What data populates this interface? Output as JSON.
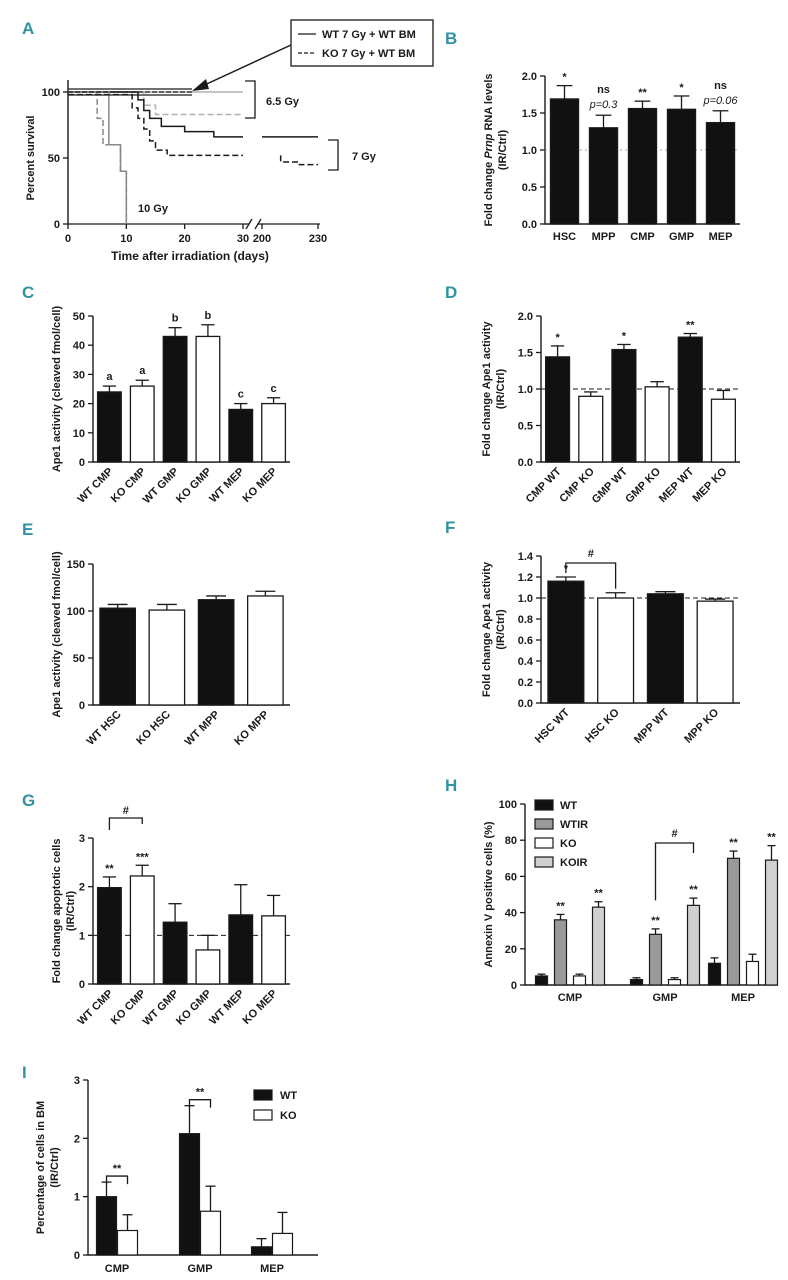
{
  "chart_data": [
    {
      "panel": "A",
      "type": "line",
      "ylabel": "Percent survival",
      "xlabel": "Time after irradiation (days)",
      "y_ticks": [
        "0",
        "50",
        "100"
      ],
      "x_ticks": [
        "0",
        "10",
        "20",
        "30",
        "200",
        "230"
      ],
      "legend": {
        "wt": "WT 7 Gy + WT BM",
        "ko": "KO 7 Gy + WT BM"
      },
      "dose_labels": {
        "d65": "6.5 Gy",
        "d7": "7 Gy",
        "d10": "10 Gy"
      },
      "series": [
        {
          "name": "WT 6.5 Gy",
          "style": "solid",
          "color": "#b0b0b0",
          "points": [
            [
              0,
              100
            ],
            [
              30,
              100
            ]
          ]
        },
        {
          "name": "KO 6.5 Gy",
          "style": "dashed",
          "color": "#b0b0b0",
          "points": [
            [
              0,
              100
            ],
            [
              13,
              100
            ],
            [
              13,
              90
            ],
            [
              15,
              90
            ],
            [
              15,
              83
            ],
            [
              30,
              83
            ]
          ]
        },
        {
          "name": "WT 7 Gy",
          "style": "solid",
          "color": "#1a1a1a",
          "points": [
            [
              0,
              100
            ],
            [
              12,
              100
            ],
            [
              12,
              94
            ],
            [
              13,
              94
            ],
            [
              13,
              86
            ],
            [
              14,
              86
            ],
            [
              14,
              80
            ],
            [
              16,
              80
            ],
            [
              16,
              74
            ],
            [
              20,
              74
            ],
            [
              20,
              70
            ],
            [
              25,
              70
            ],
            [
              25,
              66
            ],
            [
              30,
              66
            ],
            [
              200,
              66
            ],
            [
              230,
              66
            ]
          ]
        },
        {
          "name": "KO 7 Gy",
          "style": "dashed",
          "color": "#1a1a1a",
          "points": [
            [
              0,
              98
            ],
            [
              11,
              98
            ],
            [
              11,
              88
            ],
            [
              12,
              88
            ],
            [
              12,
              80
            ],
            [
              13,
              80
            ],
            [
              13,
              72
            ],
            [
              14,
              72
            ],
            [
              14,
              63
            ],
            [
              15,
              63
            ],
            [
              15,
              56
            ],
            [
              17,
              56
            ],
            [
              17,
              52
            ],
            [
              30,
              52
            ],
            [
              210,
              52
            ],
            [
              210,
              47
            ],
            [
              220,
              47
            ],
            [
              220,
              45
            ],
            [
              230,
              45
            ]
          ]
        },
        {
          "name": "WT 10 Gy",
          "style": "solid",
          "color": "#888888",
          "points": [
            [
              0,
              100
            ],
            [
              7,
              100
            ],
            [
              7,
              60
            ],
            [
              9,
              60
            ],
            [
              9,
              40
            ],
            [
              10,
              40
            ],
            [
              10,
              0
            ]
          ]
        },
        {
          "name": "KO 10 Gy",
          "style": "dashed",
          "color": "#888888",
          "points": [
            [
              0,
              100
            ],
            [
              5,
              100
            ],
            [
              5,
              80
            ],
            [
              6,
              80
            ],
            [
              6,
              60
            ],
            [
              9,
              60
            ],
            [
              9,
              40
            ],
            [
              10,
              40
            ],
            [
              10,
              0
            ]
          ]
        }
      ]
    },
    {
      "panel": "B",
      "type": "bar",
      "ylabel_pre": "Fold change ",
      "ylabel_it": "Prnp",
      "ylabel_post": " RNA levels",
      "ylabel2": "(IR/Ctrl)",
      "categories": [
        "HSC",
        "MPP",
        "CMP",
        "GMP",
        "MEP"
      ],
      "values": [
        1.69,
        1.3,
        1.56,
        1.55,
        1.37
      ],
      "errors": [
        0.18,
        0.17,
        0.1,
        0.18,
        0.16
      ],
      "sig": [
        "*",
        "ns",
        "**",
        "*",
        "ns"
      ],
      "pvals": [
        "",
        "p=0.3",
        "",
        "",
        "p=0.06"
      ],
      "ylim": [
        0,
        2.0
      ],
      "y_ticks": [
        "0.0",
        "0.5",
        "1.0",
        "1.5",
        "2.0"
      ],
      "reference": 1.0
    },
    {
      "panel": "C",
      "type": "bar",
      "ylabel": "Ape1 activity (cleaved fmol/cell)",
      "categories": [
        "WT CMP",
        "KO CMP",
        "WT GMP",
        "KO GMP",
        "WT MEP",
        "KO MEP"
      ],
      "values": [
        24,
        26,
        43,
        43,
        18,
        20
      ],
      "errors": [
        2,
        2,
        3,
        4,
        2,
        2
      ],
      "fills": [
        "black",
        "white",
        "black",
        "white",
        "black",
        "white"
      ],
      "letters": [
        "a",
        "a",
        "b",
        "b",
        "c",
        "c"
      ],
      "ylim": [
        0,
        50
      ],
      "y_ticks": [
        "0",
        "10",
        "20",
        "30",
        "40",
        "50"
      ]
    },
    {
      "panel": "D",
      "type": "bar",
      "ylabel": "Fold change Ape1 activity",
      "ylabel2": "(IR/Ctrl)",
      "categories": [
        "CMP WT",
        "CMP KO",
        "GMP WT",
        "GMP KO",
        "MEP WT",
        "MEP KO"
      ],
      "values": [
        1.44,
        0.9,
        1.54,
        1.03,
        1.71,
        0.86
      ],
      "errors": [
        0.15,
        0.06,
        0.07,
        0.07,
        0.05,
        0.12
      ],
      "fills": [
        "black",
        "white",
        "black",
        "white",
        "black",
        "white"
      ],
      "sig": [
        "*",
        "",
        "*",
        "",
        "**",
        ""
      ],
      "ylim": [
        0,
        2.0
      ],
      "y_ticks": [
        "0.0",
        "0.5",
        "1.0",
        "1.5",
        "2.0"
      ],
      "reference": 1.0
    },
    {
      "panel": "E",
      "type": "bar",
      "ylabel": "Ape1 activity (cleaved fmol/cell)",
      "categories": [
        "WT HSC",
        "KO HSC",
        "WT MPP",
        "KO MPP"
      ],
      "values": [
        103,
        101,
        112,
        116
      ],
      "errors": [
        4,
        6,
        4,
        5
      ],
      "fills": [
        "black",
        "white",
        "black",
        "white"
      ],
      "ylim": [
        0,
        150
      ],
      "y_ticks": [
        "0",
        "50",
        "100",
        "150"
      ]
    },
    {
      "panel": "F",
      "type": "bar",
      "ylabel": "Fold change Ape1 activity",
      "ylabel2": "(IR/Ctrl)",
      "categories": [
        "HSC WT",
        "HSC KO",
        "MPP WT",
        "MPP KO"
      ],
      "values": [
        1.16,
        1.0,
        1.04,
        0.97
      ],
      "errors": [
        0.04,
        0.05,
        0.02,
        0.02
      ],
      "fills": [
        "black",
        "white",
        "black",
        "white"
      ],
      "sig": [
        "*",
        "",
        "",
        ""
      ],
      "bracket_label": "#",
      "ylim": [
        0,
        1.4
      ],
      "y_ticks": [
        "0.0",
        "0.2",
        "0.4",
        "0.6",
        "0.8",
        "1.0",
        "1.2",
        "1.4"
      ],
      "reference": 1.0
    },
    {
      "panel": "G",
      "type": "bar",
      "ylabel": "Fold change apoptotic cells",
      "ylabel2": "(IR/Ctrl)",
      "categories": [
        "WT CMP",
        "KO CMP",
        "WT GMP",
        "KO GMP",
        "WT MEP",
        "KO MEP"
      ],
      "values": [
        1.98,
        2.22,
        1.27,
        0.7,
        1.42,
        1.4
      ],
      "errors": [
        0.22,
        0.22,
        0.38,
        0.3,
        0.62,
        0.42
      ],
      "fills": [
        "black",
        "white",
        "black",
        "white",
        "black",
        "white"
      ],
      "sig": [
        "**",
        "***",
        "",
        "",
        "",
        ""
      ],
      "bracket_label": "#",
      "ylim": [
        0,
        3
      ],
      "y_ticks": [
        "0",
        "1",
        "2",
        "3"
      ],
      "reference": 1.0
    },
    {
      "panel": "H",
      "type": "bar",
      "ylabel": "Annexin V positive cells (%)",
      "categories": [
        "CMP",
        "GMP",
        "MEP"
      ],
      "series": [
        {
          "name": "WT",
          "color": "#111111",
          "values": [
            5,
            3,
            12
          ],
          "errors": [
            1,
            1,
            3
          ],
          "sig": [
            "",
            "",
            ""
          ]
        },
        {
          "name": "WTIR",
          "color": "#9a9a9a",
          "values": [
            36,
            28,
            70
          ],
          "errors": [
            3,
            3,
            4
          ],
          "sig": [
            "**",
            "**",
            "**"
          ]
        },
        {
          "name": "KO",
          "color": "#ffffff",
          "values": [
            5,
            3,
            13
          ],
          "errors": [
            1,
            1,
            4
          ],
          "sig": [
            "",
            "",
            ""
          ]
        },
        {
          "name": "KOIR",
          "color": "#d0d0d0",
          "values": [
            43,
            44,
            69
          ],
          "errors": [
            3,
            4,
            8
          ],
          "sig": [
            "**",
            "**",
            "**"
          ]
        }
      ],
      "bracket_label": "#",
      "ylim": [
        0,
        100
      ],
      "y_ticks": [
        "0",
        "20",
        "40",
        "60",
        "80",
        "100"
      ]
    },
    {
      "panel": "I",
      "type": "bar",
      "ylabel": "Percentage of cells in BM",
      "ylabel2": "(IR/Ctrl)",
      "categories": [
        "CMP",
        "GMP",
        "MEP"
      ],
      "series": [
        {
          "name": "WT",
          "color": "#111111",
          "values": [
            1.0,
            2.08,
            0.14
          ],
          "errors": [
            0.25,
            0.48,
            0.14
          ]
        },
        {
          "name": "KO",
          "color": "#ffffff",
          "values": [
            0.42,
            0.75,
            0.37
          ],
          "errors": [
            0.27,
            0.43,
            0.36
          ]
        }
      ],
      "sig": [
        "**",
        "**",
        ""
      ],
      "ylim": [
        0,
        3
      ],
      "y_ticks": [
        "0",
        "1",
        "2",
        "3"
      ]
    }
  ]
}
